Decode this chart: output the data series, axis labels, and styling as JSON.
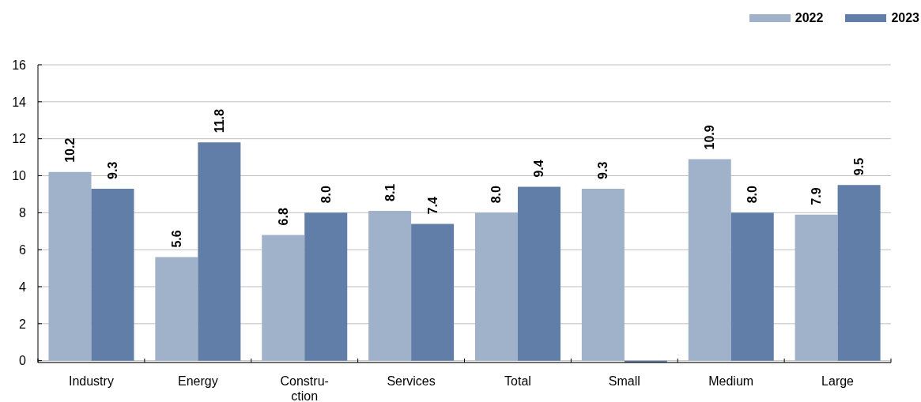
{
  "chart_data": {
    "type": "bar",
    "categories": [
      "Industry",
      "Energy",
      "Constru-\nction",
      "Services",
      "Total",
      "Small",
      "Medium",
      "Large"
    ],
    "series": [
      {
        "name": "2022",
        "color": "#a0b1ca",
        "values": [
          10.2,
          5.6,
          6.8,
          8.1,
          8.0,
          9.3,
          10.9,
          7.9
        ],
        "value_labels": [
          "10.2",
          "5.6",
          "6.8",
          "8.1",
          "8.0",
          "9.3",
          "10.9",
          "7.9"
        ]
      },
      {
        "name": "2023",
        "color": "#617ea9",
        "values": [
          9.3,
          11.8,
          8.0,
          7.4,
          9.4,
          -0.1,
          8.0,
          9.5
        ],
        "value_labels": [
          "9.3",
          "11.8",
          "8.0",
          "7.4",
          "9.4",
          null,
          "8.0",
          "9.5"
        ]
      }
    ],
    "ylim": [
      -0.1,
      16
    ],
    "yticks": [
      0,
      2,
      4,
      6,
      8,
      10,
      12,
      14,
      16
    ],
    "grid": "y",
    "legend": "top right"
  }
}
